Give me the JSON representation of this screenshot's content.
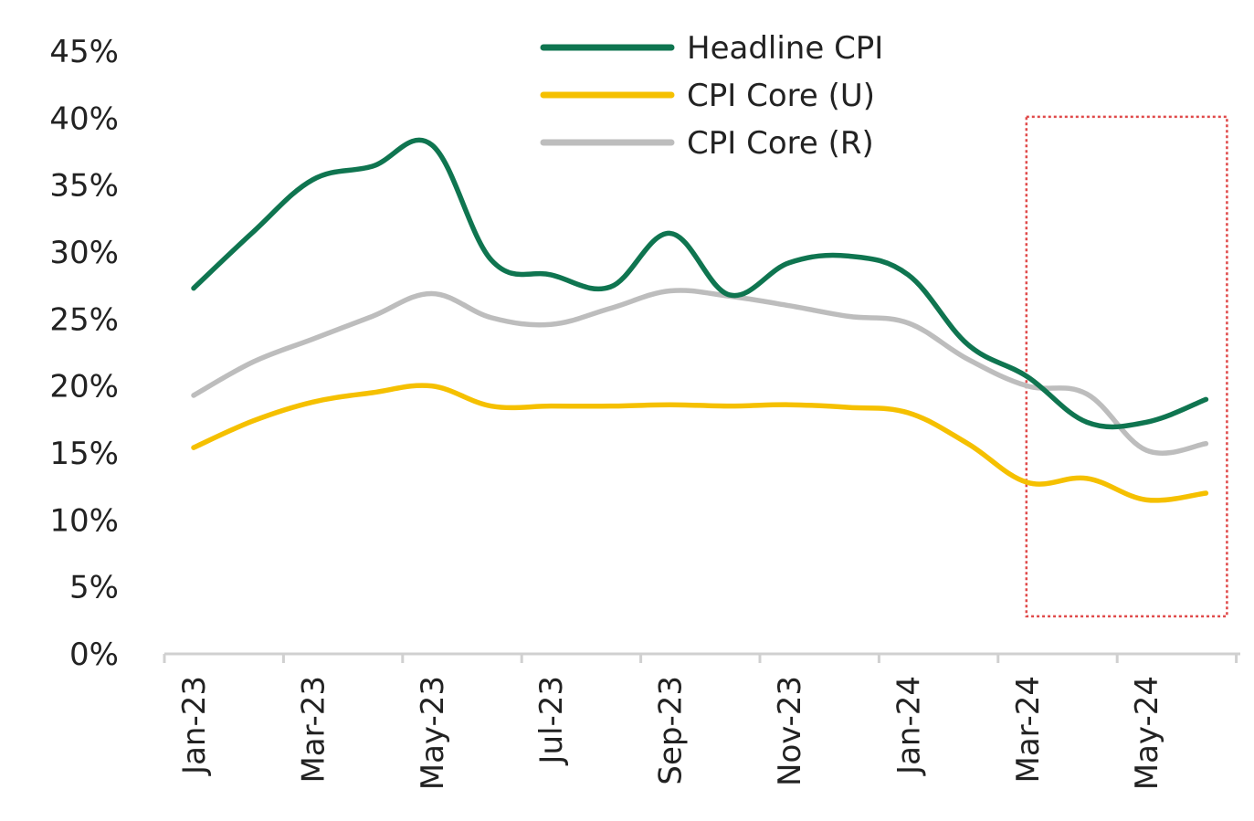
{
  "chart_data": {
    "type": "line",
    "title": "",
    "xlabel": "",
    "ylabel": "",
    "ylim": [
      0,
      45
    ],
    "y_ticks": [
      "0%",
      "5%",
      "10%",
      "15%",
      "20%",
      "25%",
      "30%",
      "35%",
      "40%",
      "45%"
    ],
    "x_ticks": [
      "Jan-23",
      "Mar-23",
      "May-23",
      "Jul-23",
      "Sep-23",
      "Nov-23",
      "Jan-24",
      "Mar-24",
      "May-24"
    ],
    "x": [
      "Jan-23",
      "Feb-23",
      "Mar-23",
      "Apr-23",
      "May-23",
      "Jun-23",
      "Jul-23",
      "Aug-23",
      "Sep-23",
      "Oct-23",
      "Nov-23",
      "Dec-23",
      "Jan-24",
      "Feb-24",
      "Mar-24",
      "Apr-24",
      "May-24",
      "Jun-24"
    ],
    "series": [
      {
        "name": "Headline CPI",
        "color": "#0f7550",
        "values": [
          27.3,
          31.5,
          35.4,
          36.4,
          38.0,
          29.4,
          28.3,
          27.4,
          31.4,
          26.8,
          29.2,
          29.7,
          28.3,
          23.1,
          20.7,
          17.3,
          17.3,
          19.0
        ]
      },
      {
        "name": "CPI Core (U)",
        "color": "#f5c000",
        "values": [
          15.4,
          17.4,
          18.8,
          19.5,
          20.0,
          18.5,
          18.5,
          18.5,
          18.6,
          18.5,
          18.6,
          18.4,
          18.0,
          15.7,
          12.8,
          13.1,
          11.5,
          12.0
        ]
      },
      {
        "name": "CPI Core (R)",
        "color": "#bdbdbd",
        "values": [
          19.3,
          21.8,
          23.5,
          25.2,
          26.9,
          25.1,
          24.6,
          25.8,
          27.1,
          26.7,
          26.0,
          25.2,
          24.7,
          22.0,
          20.0,
          19.4,
          15.2,
          15.7
        ]
      }
    ],
    "legend_position": "top-center",
    "grid": false,
    "highlight": {
      "style": "red dotted rectangle",
      "color": "#e04a4a",
      "x_start": "Mar-24",
      "x_end": "Jun-24",
      "y_range": [
        2.8,
        40.1
      ]
    }
  }
}
